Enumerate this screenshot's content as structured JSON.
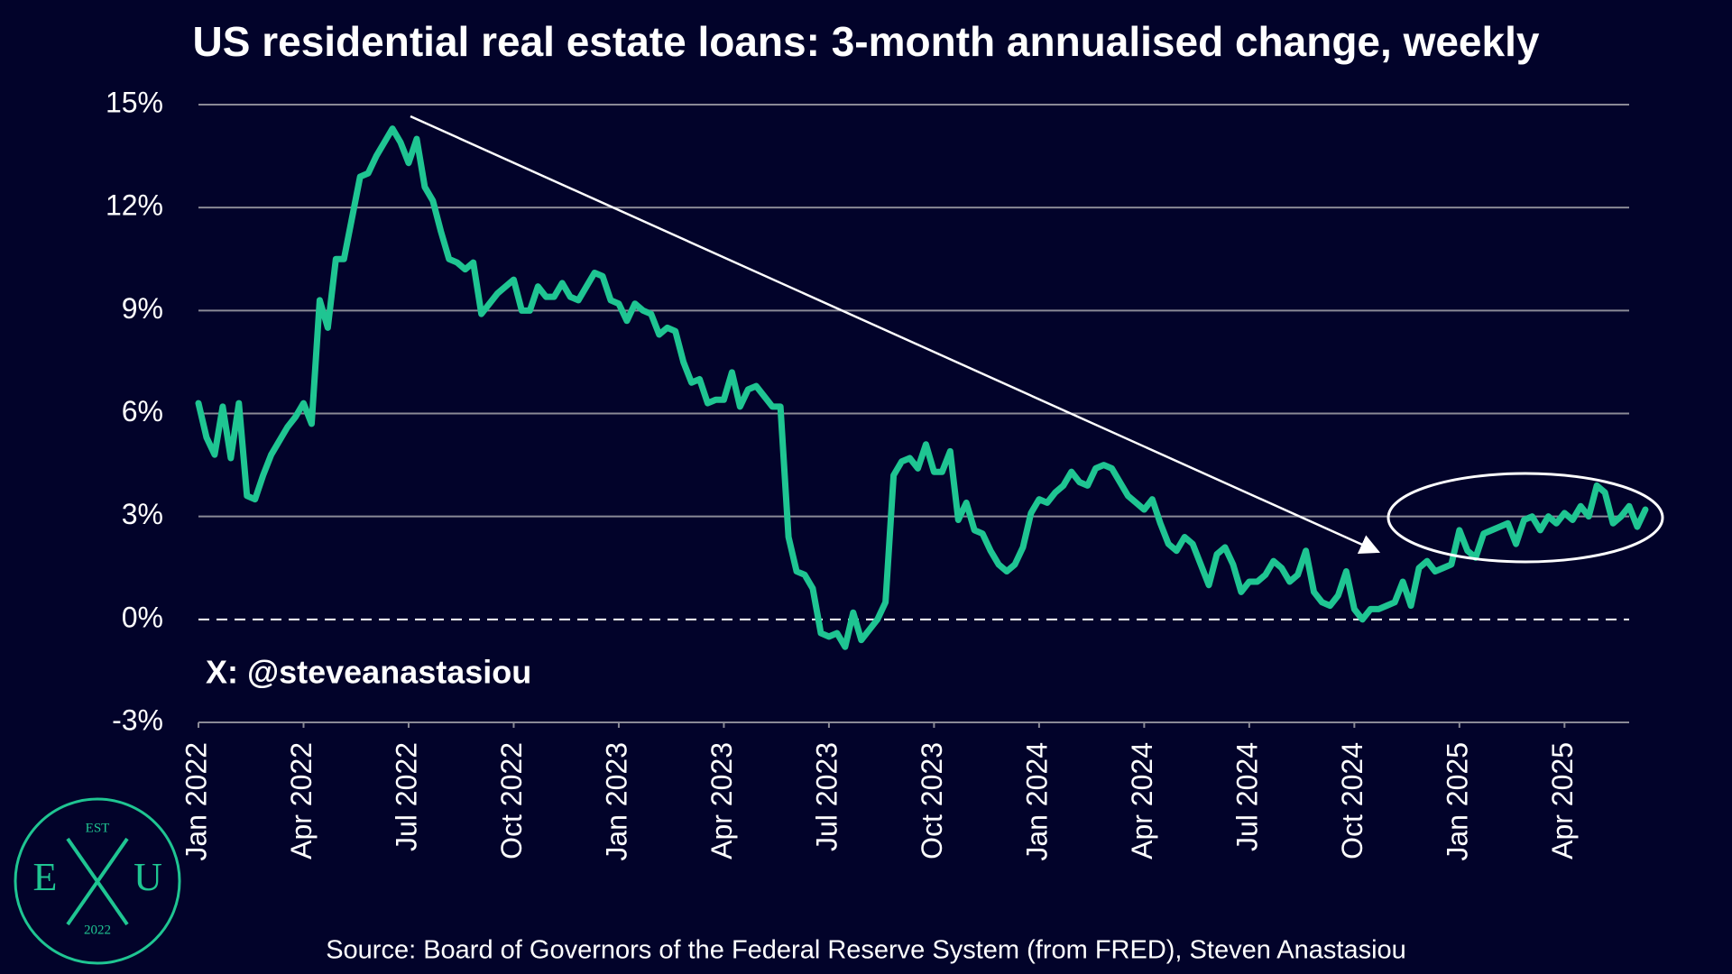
{
  "chart_data": {
    "type": "line",
    "title": "US residential real estate loans: 3-month annualised change, weekly",
    "annotation": "X: @steveanastasiou",
    "source": "Source: Board of Governors of the Federal Reserve System (from FRED), Steven Anastasiou",
    "logo": {
      "top": "EST",
      "left": "E",
      "right": "U",
      "bottom": "2022"
    },
    "color": "#1fc592",
    "grid": true,
    "xlim": [
      0,
      177
    ],
    "xticks": [
      {
        "value": 0,
        "label": "Jan 2022"
      },
      {
        "value": 13,
        "label": "Apr 2022"
      },
      {
        "value": 26,
        "label": "Jul 2022"
      },
      {
        "value": 39,
        "label": "Oct 2022"
      },
      {
        "value": 52,
        "label": "Jan 2023"
      },
      {
        "value": 65,
        "label": "Apr 2023"
      },
      {
        "value": 78,
        "label": "Jul 2023"
      },
      {
        "value": 91,
        "label": "Oct 2023"
      },
      {
        "value": 104,
        "label": "Jan 2024"
      },
      {
        "value": 117,
        "label": "Apr 2024"
      },
      {
        "value": 130,
        "label": "Jul 2024"
      },
      {
        "value": 143,
        "label": "Oct 2024"
      },
      {
        "value": 156,
        "label": "Jan 2025"
      },
      {
        "value": 169,
        "label": "Apr 2025"
      }
    ],
    "ylim": [
      -3,
      15
    ],
    "yticks": [
      {
        "value": -3,
        "label": "-3%"
      },
      {
        "value": 0,
        "label": "0%"
      },
      {
        "value": 3,
        "label": "3%"
      },
      {
        "value": 6,
        "label": "6%"
      },
      {
        "value": 9,
        "label": "9%"
      },
      {
        "value": 12,
        "label": "12%"
      },
      {
        "value": 15,
        "label": "15%"
      }
    ],
    "values": [
      6.3,
      5.3,
      4.8,
      6.2,
      4.7,
      6.3,
      3.6,
      3.5,
      4.2,
      4.8,
      5.2,
      5.6,
      5.9,
      6.3,
      5.7,
      9.3,
      8.5,
      10.5,
      10.5,
      11.7,
      12.9,
      13.0,
      13.5,
      13.9,
      14.3,
      13.9,
      13.3,
      14.0,
      12.6,
      12.2,
      11.3,
      10.5,
      10.4,
      10.2,
      10.4,
      8.9,
      9.2,
      9.5,
      9.7,
      9.9,
      9.0,
      9.0,
      9.7,
      9.4,
      9.4,
      9.8,
      9.4,
      9.3,
      9.7,
      10.1,
      10.0,
      9.3,
      9.2,
      8.7,
      9.2,
      9.0,
      8.9,
      8.3,
      8.5,
      8.4,
      7.5,
      6.9,
      7.0,
      6.3,
      6.4,
      6.4,
      7.2,
      6.2,
      6.7,
      6.8,
      6.5,
      6.2,
      6.2,
      2.4,
      1.4,
      1.3,
      0.9,
      -0.4,
      -0.5,
      -0.4,
      -0.8,
      0.2,
      -0.6,
      -0.3,
      0.0,
      0.5,
      4.2,
      4.6,
      4.7,
      4.4,
      5.1,
      4.3,
      4.3,
      4.9,
      2.9,
      3.4,
      2.6,
      2.5,
      2.0,
      1.6,
      1.4,
      1.6,
      2.1,
      3.1,
      3.5,
      3.4,
      3.7,
      3.9,
      4.3,
      4.0,
      3.9,
      4.4,
      4.5,
      4.4,
      4.0,
      3.6,
      3.4,
      3.2,
      3.5,
      2.8,
      2.2,
      2.0,
      2.4,
      2.2,
      1.6,
      1.0,
      1.9,
      2.1,
      1.6,
      0.8,
      1.1,
      1.1,
      1.3,
      1.7,
      1.5,
      1.1,
      1.3,
      2.0,
      0.8,
      0.5,
      0.4,
      0.7,
      1.4,
      0.3,
      0.0,
      0.3,
      0.3,
      0.4,
      0.5,
      1.1,
      0.4,
      1.5,
      1.7,
      1.4,
      1.5,
      1.6,
      2.6,
      2.0,
      1.8,
      2.5,
      2.6,
      2.7,
      2.8,
      2.2,
      2.9,
      3.0,
      2.6,
      3.0,
      2.8,
      3.1,
      2.9,
      3.3,
      3.0,
      3.9,
      3.7,
      2.8,
      3.0,
      3.3,
      2.7,
      3.2
    ]
  }
}
